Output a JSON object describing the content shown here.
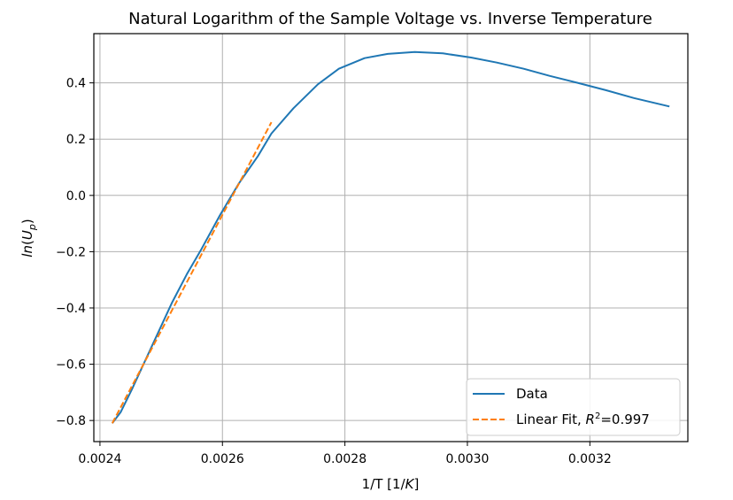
{
  "chart_data": {
    "type": "line",
    "title": "Natural Logarithm of the Sample Voltage vs. Inverse Temperature",
    "xlabel": "1/T [1/K]",
    "ylabel": "ln(Up)",
    "xlim": [
      0.00239,
      0.00336
    ],
    "ylim": [
      -0.875,
      0.575
    ],
    "x_ticks": [
      {
        "value": 0.0024,
        "label": "0.0024"
      },
      {
        "value": 0.0026,
        "label": "0.0026"
      },
      {
        "value": 0.0028,
        "label": "0.0028"
      },
      {
        "value": 0.003,
        "label": "0.0030"
      },
      {
        "value": 0.0032,
        "label": "0.0032"
      }
    ],
    "y_ticks": [
      {
        "value": -0.8,
        "label": "−0.8"
      },
      {
        "value": -0.6,
        "label": "−0.6"
      },
      {
        "value": -0.4,
        "label": "−0.4"
      },
      {
        "value": -0.2,
        "label": "−0.2"
      },
      {
        "value": 0.0,
        "label": "0.0"
      },
      {
        "value": 0.2,
        "label": "0.2"
      },
      {
        "value": 0.4,
        "label": "0.4"
      }
    ],
    "grid": true,
    "legend_position": "lower-right",
    "series": [
      {
        "name": "Data",
        "color": "#1f77b4",
        "style": "solid",
        "x": [
          0.00242,
          0.002434,
          0.002452,
          0.002486,
          0.002518,
          0.002542,
          0.002566,
          0.002596,
          0.002626,
          0.002658,
          0.00268,
          0.002716,
          0.002756,
          0.00279,
          0.002832,
          0.00287,
          0.002914,
          0.00296,
          0.003006,
          0.003048,
          0.003092,
          0.003134,
          0.00318,
          0.003226,
          0.003272,
          0.00333
        ],
        "y": [
          -0.81,
          -0.77,
          -0.69,
          -0.53,
          -0.38,
          -0.28,
          -0.19,
          -0.07,
          0.04,
          0.14,
          0.22,
          0.31,
          0.395,
          0.45,
          0.488,
          0.503,
          0.51,
          0.505,
          0.49,
          0.472,
          0.45,
          0.425,
          0.4,
          0.374,
          0.346,
          0.316
        ]
      },
      {
        "name": "Linear Fit, R²=0.997",
        "color": "#ff7f0e",
        "style": "dashed",
        "x": [
          0.00242,
          0.00268
        ],
        "y": [
          -0.81,
          0.26
        ]
      }
    ]
  }
}
